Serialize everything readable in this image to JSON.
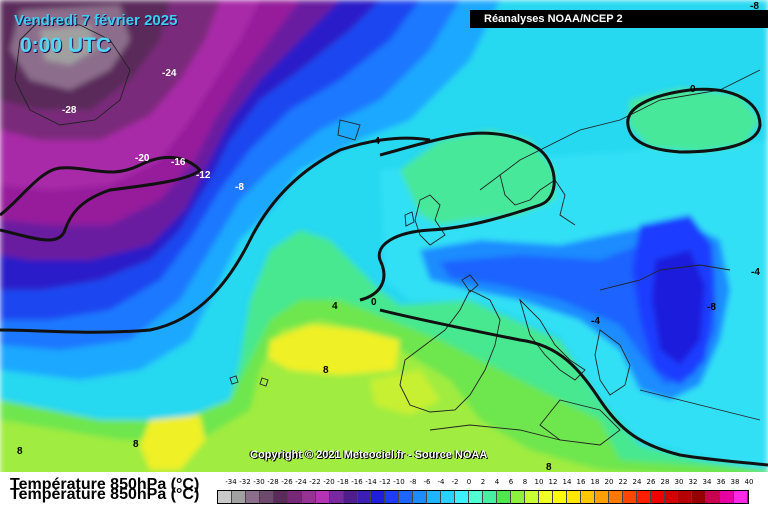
{
  "header": {
    "date": "Vendredi 7 février 2025",
    "time": "0:00 UTC",
    "source": "Réanalyses NOAA/NCEP 2",
    "copyright": "Copyright © 2021 Meteociel.fr - Source NOAA"
  },
  "map_labels": [
    {
      "id": "l1",
      "text": "-24"
    },
    {
      "id": "l2",
      "text": "-28"
    },
    {
      "id": "l3",
      "text": "-20"
    },
    {
      "id": "l4",
      "text": "-16"
    },
    {
      "id": "l5",
      "text": "-12"
    },
    {
      "id": "l6",
      "text": "-8"
    },
    {
      "id": "l7",
      "text": "-4"
    },
    {
      "id": "l8",
      "text": "0"
    },
    {
      "id": "l9",
      "text": "4"
    },
    {
      "id": "l10",
      "text": "0"
    },
    {
      "id": "l11",
      "text": "8"
    },
    {
      "id": "l12",
      "text": "8"
    },
    {
      "id": "l13",
      "text": "8"
    },
    {
      "id": "l14",
      "text": "-4"
    },
    {
      "id": "l15",
      "text": "-8"
    },
    {
      "id": "l16",
      "text": "-4"
    },
    {
      "id": "l17",
      "text": "8"
    },
    {
      "id": "l18",
      "text": "-8"
    }
  ],
  "legend": {
    "title": "Température 850hPa (°C)",
    "ticks": [
      "-34",
      "-32",
      "-30",
      "-28",
      "-26",
      "-24",
      "-22",
      "-20",
      "-18",
      "-16",
      "-14",
      "-12",
      "-10",
      "-8",
      "-6",
      "-4",
      "-2",
      "0",
      "2",
      "4",
      "6",
      "8",
      "10",
      "12",
      "14",
      "16",
      "18",
      "20",
      "22",
      "24",
      "26",
      "28",
      "30",
      "32",
      "34",
      "36",
      "38",
      "40"
    ],
    "colors": [
      "#c8c8c8",
      "#a0a0a0",
      "#8c6e8c",
      "#6e4a6e",
      "#5a2a5a",
      "#782878",
      "#963296",
      "#b432b4",
      "#7828a0",
      "#501e8c",
      "#3c1eb4",
      "#1e1edc",
      "#1e3cff",
      "#1e64ff",
      "#1e8cff",
      "#1eb4ff",
      "#28d2ff",
      "#3cf0ff",
      "#50ffd2",
      "#46f0a0",
      "#50e650",
      "#8cf03c",
      "#c8ff32",
      "#f0ff28",
      "#ffff00",
      "#ffe600",
      "#ffc800",
      "#ffa000",
      "#ff7800",
      "#ff4600",
      "#ff1e00",
      "#f00000",
      "#d20000",
      "#b40000",
      "#960000",
      "#c80050",
      "#e600a0",
      "#ff28e6"
    ]
  }
}
